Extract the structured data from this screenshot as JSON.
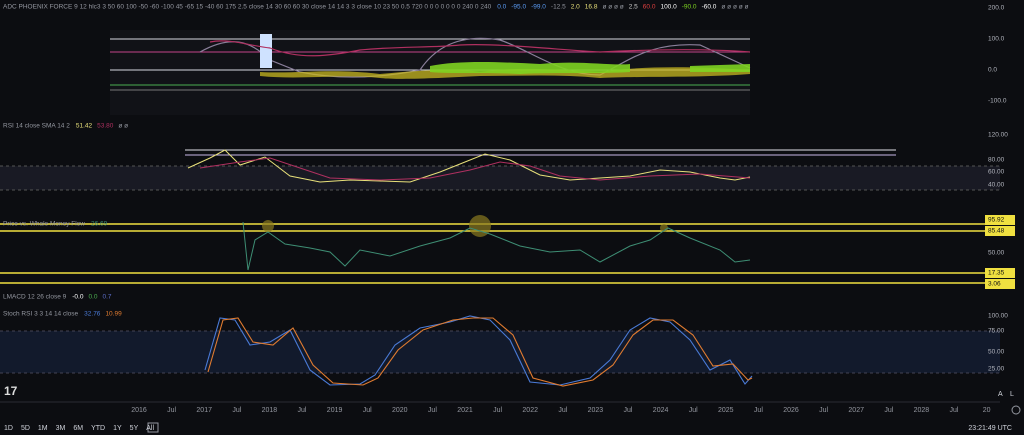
{
  "panes": [
    {
      "header": "ADC PHOENIX FORCE 9 12 hlc3 3 50 60 100 -50 -60 -100 45 -65 15 -40 60 175 2.5 close 14 30 60 60 30 close 14 14 3 3 close 10 23 50 0.5 720 0 0 0 0 0 0 0 240 0 240",
      "values": [
        "0.0",
        "-95.0",
        "-99.0",
        "-12.5",
        "2.0",
        "16.8",
        "ø ø ø ø",
        "2.5",
        "60.0",
        "100.0",
        "-90.0",
        "-60.0",
        "ø ø ø ø ø"
      ],
      "axis": [
        "200.0",
        "100.0",
        "0.0",
        "-100.0"
      ]
    },
    {
      "header": "RSI 14 close SMA 14 2",
      "values": [
        "51.42",
        "53.80",
        "ø ø"
      ],
      "axis": [
        "120.00",
        "80.00",
        "60.00",
        "40.00"
      ]
    },
    {
      "header": "Price vs. Whale Money Flow",
      "values": [
        "26.69"
      ],
      "axis": [
        "95.92",
        "85.48",
        "50.00",
        "17.35",
        "3.06"
      ]
    },
    {
      "header": "LMACD 12 26 close 9",
      "values": [
        "-0.0",
        "0.0",
        "0.7"
      ],
      "axis": []
    },
    {
      "header": "Stoch RSI 3 3 14 14 close",
      "values": [
        "32.76",
        "10.99"
      ],
      "axis": [
        "100.00",
        "75.00",
        "50.00",
        "25.00"
      ]
    }
  ],
  "time_axis": [
    "2016",
    "Jul",
    "2017",
    "Jul",
    "2018",
    "Jul",
    "2019",
    "Jul",
    "2020",
    "Jul",
    "2021",
    "Jul",
    "2022",
    "Jul",
    "2023",
    "Jul",
    "2024",
    "Jul",
    "2025",
    "Jul",
    "2026",
    "Jul",
    "2027",
    "Jul",
    "2028",
    "Jul",
    "20"
  ],
  "ranges": [
    "1D",
    "5D",
    "1M",
    "3M",
    "6M",
    "YTD",
    "1Y",
    "5Y",
    "All"
  ],
  "clock": "23:21:49 UTC",
  "scale_buttons": [
    "A",
    "L"
  ]
}
